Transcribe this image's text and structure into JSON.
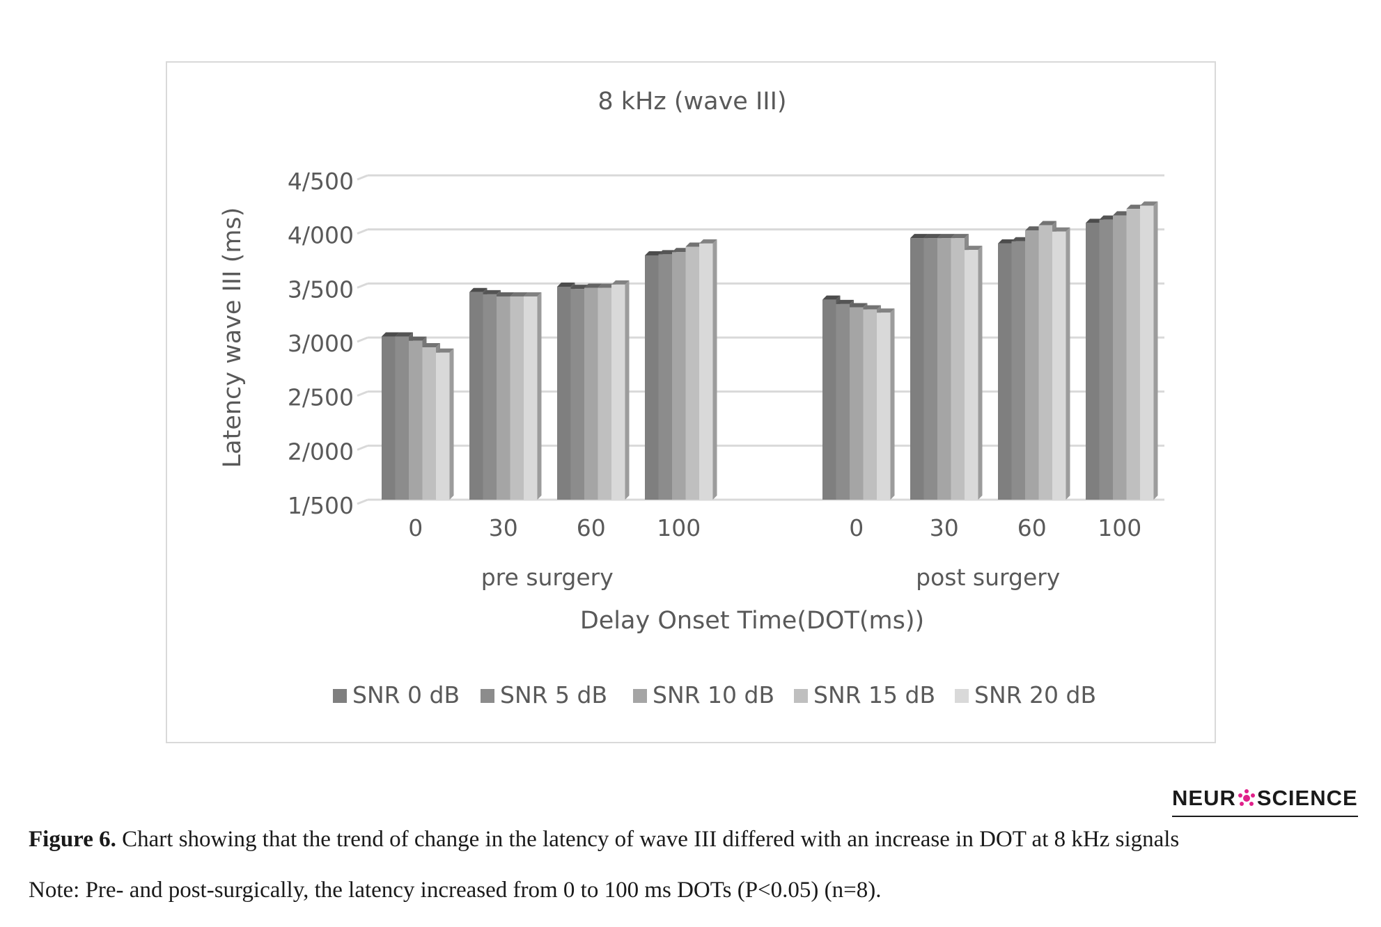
{
  "chart_data": {
    "type": "bar",
    "title": "8 kHz (wave III)",
    "xlabel": "Delay Onset Time(DOT(ms))",
    "ylabel": "Latency wave III (ms)",
    "ylim": [
      1.5,
      4.5
    ],
    "yticks": [
      "1/500",
      "2/000",
      "2/500",
      "3/000",
      "3/500",
      "4/000",
      "4/500"
    ],
    "ytick_values": [
      1.5,
      2.0,
      2.5,
      3.0,
      3.5,
      4.0,
      4.5
    ],
    "groups": [
      {
        "label": "pre surgery",
        "categories": [
          "0",
          "30",
          "60",
          "100"
        ]
      },
      {
        "label": "post surgery",
        "categories": [
          "0",
          "30",
          "60",
          "100"
        ]
      }
    ],
    "series": [
      {
        "name": "SNR 0 dB",
        "color": "#7f7f7f",
        "values": [
          3.01,
          3.42,
          3.47,
          3.76,
          3.35,
          3.92,
          3.87,
          4.06
        ]
      },
      {
        "name": "SNR 5 dB",
        "color": "#8c8c8c",
        "values": [
          3.01,
          3.4,
          3.45,
          3.77,
          3.31,
          3.92,
          3.89,
          4.09
        ]
      },
      {
        "name": "SNR 10 dB",
        "color": "#a5a5a5",
        "values": [
          2.97,
          3.38,
          3.46,
          3.79,
          3.28,
          3.92,
          3.99,
          4.13
        ]
      },
      {
        "name": "SNR 15 dB",
        "color": "#bfbfbf",
        "values": [
          2.91,
          3.38,
          3.46,
          3.84,
          3.26,
          3.92,
          4.04,
          4.19
        ]
      },
      {
        "name": "SNR 20 dB",
        "color": "#d9d9d9",
        "values": [
          2.86,
          3.38,
          3.49,
          3.87,
          3.23,
          3.81,
          3.98,
          4.22
        ]
      }
    ],
    "grid": true,
    "legend_position": "bottom"
  },
  "brand": {
    "prefix": "NEUR",
    "suffix": "SCIENCE"
  },
  "caption": {
    "figure_label": "Figure 6.",
    "figure_text": " Chart showing that the trend of change in the latency of wave III differed with an increase in DOT at 8 kHz signals",
    "note": "Note: Pre- and post-surgically, the latency increased from 0 to 100 ms DOTs (P<0.05) (n=8)."
  }
}
